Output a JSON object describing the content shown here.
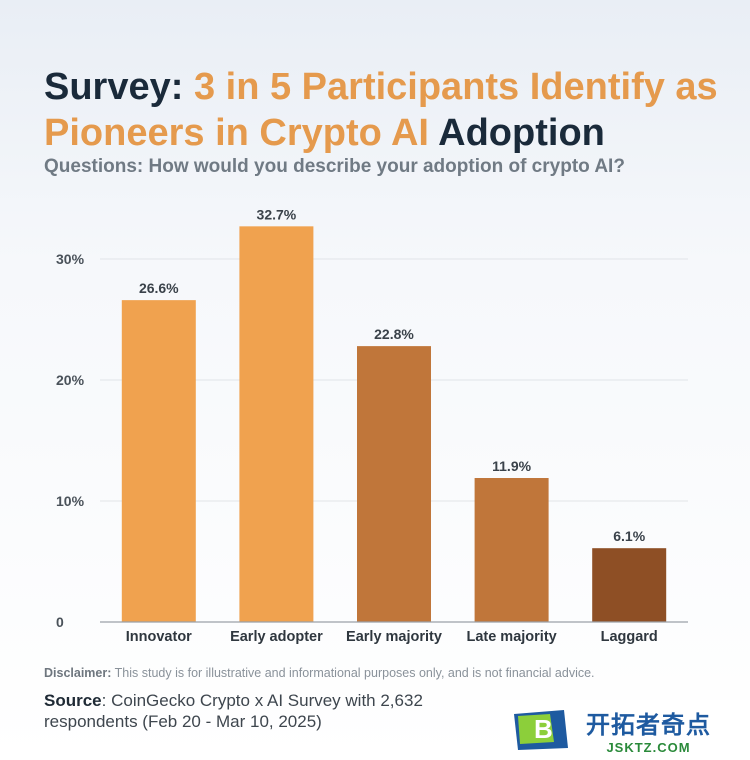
{
  "title": {
    "part1": "Survey: ",
    "part2": "3 in 5 Participants Identify as Pioneers in Crypto AI",
    "part3": " Adoption"
  },
  "subtitle": "Questions: How would you describe your adoption of crypto AI?",
  "disclaimer": {
    "label": "Disclaimer:",
    "text": " This study is for illustrative and informational purposes only, and is not financial advice."
  },
  "source": {
    "label": "Source",
    "text": ": CoinGecko Crypto x AI Survey with 2,632 respondents (Feb 20 - Mar 10, 2025)"
  },
  "watermark": {
    "main": "开拓者奇点",
    "sub": "JSKTZ.COM"
  },
  "colors": {
    "title_dark": "#1a2a3a",
    "title_accent": "#e59a4d"
  },
  "chart_data": {
    "type": "bar",
    "categories": [
      "Innovator",
      "Early adopter",
      "Early majority",
      "Late majority",
      "Laggard"
    ],
    "values": [
      26.6,
      32.7,
      22.8,
      11.9,
      6.1
    ],
    "value_labels": [
      "26.6%",
      "32.7%",
      "22.8%",
      "11.9%",
      "6.1%"
    ],
    "bar_colors": [
      "#f0a24f",
      "#f0a24f",
      "#c0763a",
      "#c0763a",
      "#8e4f25"
    ],
    "yticks": [
      0,
      10,
      20,
      30
    ],
    "ytick_labels": [
      "0",
      "10%",
      "20%",
      "30%"
    ],
    "ylim": [
      0,
      33
    ],
    "grid": true,
    "xlabel": "",
    "ylabel": ""
  }
}
